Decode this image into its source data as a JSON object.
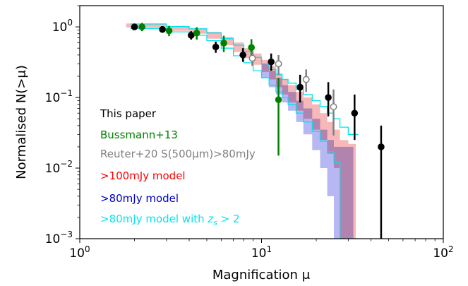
{
  "chart_data": {
    "type": "scatter",
    "xlabel": "Magnification μ",
    "ylabel": "Normalised N(>μ)",
    "xscale": "log",
    "yscale": "log",
    "xlim": [
      1,
      100
    ],
    "ylim": [
      0.001,
      2
    ],
    "x_ticks": [
      {
        "value": 1,
        "base": "10",
        "exp": "0"
      },
      {
        "value": 10,
        "base": "10",
        "exp": "1"
      },
      {
        "value": 100,
        "base": "10",
        "exp": "2"
      }
    ],
    "y_ticks": [
      {
        "value": 0.001,
        "base": "10",
        "exp": "−3"
      },
      {
        "value": 0.01,
        "base": "10",
        "exp": "−2"
      },
      {
        "value": 0.1,
        "base": "10",
        "exp": "−1"
      },
      {
        "value": 1,
        "base": "10",
        "exp": "0"
      }
    ],
    "legend_position": "lower-left",
    "series": [
      {
        "name": "This paper",
        "color": "#000000",
        "marker": "filled-circle",
        "points": [
          {
            "x": 2.0,
            "y": 1.0,
            "lo": 0.93,
            "hi": 1.07
          },
          {
            "x": 2.85,
            "y": 0.92,
            "lo": 0.83,
            "hi": 1.02
          },
          {
            "x": 4.1,
            "y": 0.76,
            "lo": 0.66,
            "hi": 0.87
          },
          {
            "x": 5.6,
            "y": 0.52,
            "lo": 0.43,
            "hi": 0.62
          },
          {
            "x": 7.9,
            "y": 0.4,
            "lo": 0.32,
            "hi": 0.5
          },
          {
            "x": 11.3,
            "y": 0.32,
            "lo": 0.24,
            "hi": 0.42
          },
          {
            "x": 16.3,
            "y": 0.14,
            "lo": 0.085,
            "hi": 0.21
          },
          {
            "x": 23.3,
            "y": 0.1,
            "lo": 0.054,
            "hi": 0.165
          },
          {
            "x": 32.5,
            "y": 0.06,
            "lo": 0.025,
            "hi": 0.11
          },
          {
            "x": 45.5,
            "y": 0.02,
            "lo": 0.001,
            "hi": 0.04
          }
        ]
      },
      {
        "name": "Bussmann+13",
        "color": "#008000",
        "marker": "filled-circle",
        "points": [
          {
            "x": 2.2,
            "y": 1.0,
            "lo": 0.87,
            "hi": 1.14
          },
          {
            "x": 3.1,
            "y": 0.88,
            "lo": 0.74,
            "hi": 1.03
          },
          {
            "x": 4.4,
            "y": 0.82,
            "lo": 0.66,
            "hi": 0.99
          },
          {
            "x": 6.2,
            "y": 0.59,
            "lo": 0.44,
            "hi": 0.75
          },
          {
            "x": 8.8,
            "y": 0.51,
            "lo": 0.36,
            "hi": 0.67
          },
          {
            "x": 12.4,
            "y": 0.093,
            "lo": 0.015,
            "hi": 0.19
          }
        ]
      },
      {
        "name": "Reuter+20 S(500μm)>80mJy",
        "color": "#808080",
        "marker": "open-circle",
        "points": [
          {
            "x": 8.9,
            "y": 0.36,
            "lo": 0.28,
            "hi": 0.45
          },
          {
            "x": 12.4,
            "y": 0.3,
            "lo": 0.21,
            "hi": 0.4
          },
          {
            "x": 17.6,
            "y": 0.18,
            "lo": 0.12,
            "hi": 0.25
          },
          {
            "x": 24.9,
            "y": 0.074,
            "lo": 0.029,
            "hi": 0.13
          }
        ]
      }
    ],
    "model_bands": [
      {
        "name": ">100mJy model",
        "color": "#ff0000",
        "fill": "#f4a6a6",
        "steps": [
          {
            "x": 1.8,
            "lo": 0.98,
            "hi": 1.12
          },
          {
            "x": 3.0,
            "lo": 0.88,
            "hi": 1.03
          },
          {
            "x": 4.0,
            "lo": 0.8,
            "hi": 0.96
          },
          {
            "x": 5.0,
            "lo": 0.68,
            "hi": 0.85
          },
          {
            "x": 6.0,
            "lo": 0.55,
            "hi": 0.72
          },
          {
            "x": 7.0,
            "lo": 0.44,
            "hi": 0.6
          },
          {
            "x": 8.0,
            "lo": 0.36,
            "hi": 0.5
          },
          {
            "x": 9.0,
            "lo": 0.29,
            "hi": 0.42
          },
          {
            "x": 10.0,
            "lo": 0.23,
            "hi": 0.34
          },
          {
            "x": 11.0,
            "lo": 0.18,
            "hi": 0.28
          },
          {
            "x": 12.0,
            "lo": 0.14,
            "hi": 0.22
          },
          {
            "x": 13.0,
            "lo": 0.11,
            "hi": 0.18
          },
          {
            "x": 14.0,
            "lo": 0.085,
            "hi": 0.15
          },
          {
            "x": 15.5,
            "lo": 0.065,
            "hi": 0.12
          },
          {
            "x": 17.0,
            "lo": 0.05,
            "hi": 0.1
          },
          {
            "x": 19.0,
            "lo": 0.035,
            "hi": 0.08
          },
          {
            "x": 21.0,
            "lo": 0.025,
            "hi": 0.06
          },
          {
            "x": 23.0,
            "lo": 0.016,
            "hi": 0.045
          },
          {
            "x": 25.0,
            "lo": 0.01,
            "hi": 0.035
          },
          {
            "x": 27.0,
            "lo": 0.001,
            "hi": 0.025
          },
          {
            "x": 30.0,
            "lo": 0.001,
            "hi": 0.022
          },
          {
            "x": 33.0
          }
        ]
      },
      {
        "name": ">80mJy model",
        "color": "#0000cc",
        "fill": "#9f9ff0",
        "steps": [
          {
            "x": 10.0,
            "lo": 0.19,
            "hi": 0.3
          },
          {
            "x": 11.0,
            "lo": 0.14,
            "hi": 0.24
          },
          {
            "x": 12.0,
            "lo": 0.11,
            "hi": 0.19
          },
          {
            "x": 13.0,
            "lo": 0.085,
            "hi": 0.15
          },
          {
            "x": 14.0,
            "lo": 0.065,
            "hi": 0.12
          },
          {
            "x": 15.5,
            "lo": 0.045,
            "hi": 0.09
          },
          {
            "x": 17.0,
            "lo": 0.03,
            "hi": 0.07
          },
          {
            "x": 19.0,
            "lo": 0.018,
            "hi": 0.05
          },
          {
            "x": 21.0,
            "lo": 0.01,
            "hi": 0.035
          },
          {
            "x": 23.0,
            "lo": 0.004,
            "hi": 0.025
          },
          {
            "x": 25.0,
            "lo": 0.001,
            "hi": 0.02
          },
          {
            "x": 30.0,
            "lo": 0.001,
            "hi": 0.02
          },
          {
            "x": 32.0
          }
        ]
      },
      {
        "name": ">80mJy model with zs > 2",
        "color": "#00e5ee",
        "fill": "none",
        "steps": [
          {
            "x": 1.9,
            "lo": 0.95,
            "hi": 1.1
          },
          {
            "x": 3.0,
            "lo": 0.85,
            "hi": 1.01
          },
          {
            "x": 4.0,
            "lo": 0.76,
            "hi": 0.94
          },
          {
            "x": 5.0,
            "lo": 0.64,
            "hi": 0.82
          },
          {
            "x": 6.0,
            "lo": 0.5,
            "hi": 0.68
          },
          {
            "x": 7.0,
            "lo": 0.39,
            "hi": 0.55
          },
          {
            "x": 8.0,
            "lo": 0.31,
            "hi": 0.45
          },
          {
            "x": 9.0,
            "lo": 0.24,
            "hi": 0.37
          },
          {
            "x": 10.0,
            "lo": 0.19,
            "hi": 0.3
          },
          {
            "x": 11.0,
            "lo": 0.15,
            "hi": 0.25
          },
          {
            "x": 12.0,
            "lo": 0.12,
            "hi": 0.21
          },
          {
            "x": 13.0,
            "lo": 0.1,
            "hi": 0.18
          },
          {
            "x": 14.0,
            "lo": 0.08,
            "hi": 0.16
          },
          {
            "x": 15.5,
            "lo": 0.06,
            "hi": 0.13
          },
          {
            "x": 17.0,
            "lo": 0.045,
            "hi": 0.11
          },
          {
            "x": 19.0,
            "lo": 0.033,
            "hi": 0.09
          },
          {
            "x": 21.0,
            "lo": 0.024,
            "hi": 0.075
          },
          {
            "x": 23.0,
            "lo": 0.017,
            "hi": 0.06
          },
          {
            "x": 25.0,
            "lo": 0.012,
            "hi": 0.05
          },
          {
            "x": 27.0,
            "lo": 0.001,
            "hi": 0.038
          },
          {
            "x": 30.0,
            "lo": 0.001,
            "hi": 0.03
          },
          {
            "x": 34.0
          }
        ]
      }
    ],
    "legend": [
      {
        "label": "This paper",
        "color": "#000000"
      },
      {
        "label": "Bussmann+13",
        "color": "#008000"
      },
      {
        "label": "Reuter+20 S(500μm)>80mJy",
        "color": "#808080"
      },
      {
        "label": ">100mJy model",
        "color": "#ff0000"
      },
      {
        "label": ">80mJy model",
        "color": "#0000cc"
      },
      {
        "label": ">80mJy model with zs > 2",
        "color": "#00e5ee"
      }
    ]
  }
}
